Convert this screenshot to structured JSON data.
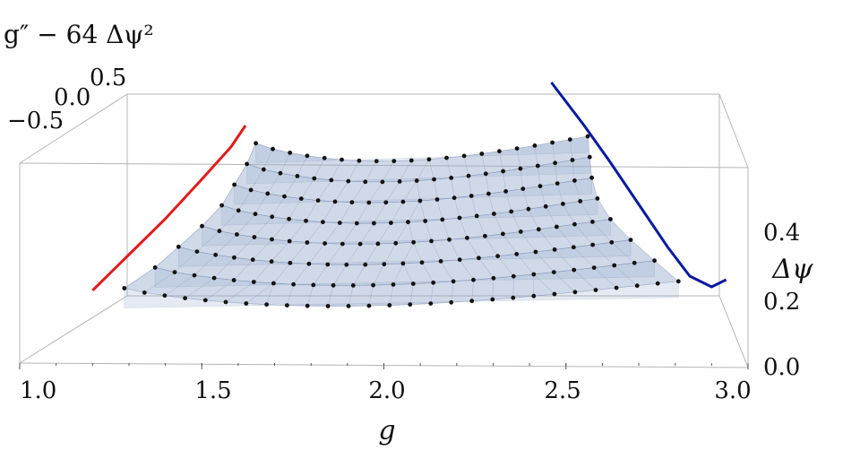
{
  "chart_data": {
    "type": "scatter3d",
    "x_axis": {
      "label": "g",
      "range": [
        1.0,
        3.0
      ],
      "ticks": [
        "1.0",
        "1.5",
        "2.0",
        "2.5",
        "3.0"
      ]
    },
    "y_axis": {
      "label": "Δψ",
      "range": [
        0.0,
        0.55
      ],
      "ticks": [
        "0.0",
        "0.2",
        "0.4"
      ]
    },
    "z_axis": {
      "label": "g″ − 64 Δψ²",
      "ticks": [
        "−0.5",
        "0.0",
        "0.5"
      ]
    },
    "grid": false,
    "series": [
      {
        "g_start": 1.28,
        "g_end": 2.8,
        "delta": 0.1,
        "count": 28
      },
      {
        "g_start": 1.36,
        "g_end": 2.73,
        "delta": 0.16,
        "count": 26
      },
      {
        "g_start": 1.42,
        "g_end": 2.66,
        "delta": 0.22,
        "count": 25
      },
      {
        "g_start": 1.48,
        "g_end": 2.6,
        "delta": 0.28,
        "count": 24
      },
      {
        "g_start": 1.53,
        "g_end": 2.56,
        "delta": 0.34,
        "count": 23
      },
      {
        "g_start": 1.56,
        "g_end": 2.54,
        "delta": 0.4,
        "count": 22
      },
      {
        "g_start": 1.59,
        "g_end": 2.53,
        "delta": 0.46,
        "count": 21
      },
      {
        "g_start": 1.61,
        "g_end": 2.52,
        "delta": 0.52,
        "count": 20
      }
    ],
    "boundary_curves": [
      {
        "color": "#e31a1c",
        "points": [
          [
            1.2,
            0.12
          ],
          [
            1.3,
            0.22
          ],
          [
            1.4,
            0.32
          ],
          [
            1.5,
            0.43
          ],
          [
            1.58,
            0.52
          ],
          [
            1.62,
            0.58
          ]
        ]
      },
      {
        "color": "#0a1aa0",
        "points": [
          [
            2.46,
            0.7
          ],
          [
            2.55,
            0.58
          ],
          [
            2.62,
            0.48
          ],
          [
            2.7,
            0.36
          ],
          [
            2.78,
            0.24
          ],
          [
            2.84,
            0.16
          ],
          [
            2.9,
            0.13
          ],
          [
            2.94,
            0.15
          ]
        ]
      }
    ]
  }
}
